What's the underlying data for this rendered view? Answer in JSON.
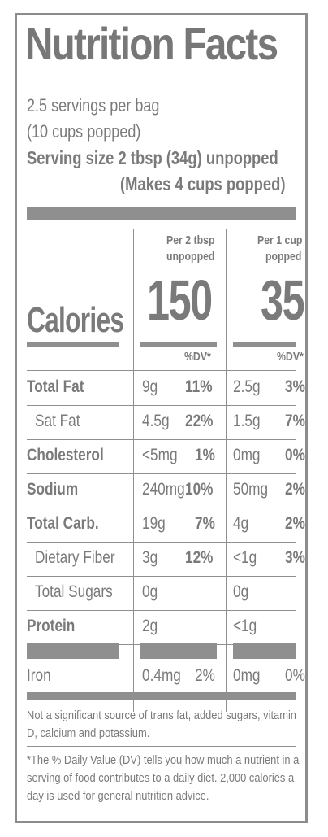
{
  "title": "Nutrition Facts",
  "servings": {
    "per_container": "2.5 servings per bag",
    "popped_total": "(10 cups popped)",
    "serving_size": "Serving size 2 tbsp (34g) unpopped",
    "makes": "(Makes 4 cups popped)"
  },
  "columns": {
    "a_header_line1": "Per 2 tbsp",
    "a_header_line2": "unpopped",
    "b_header_line1": "Per 1 cup",
    "b_header_line2": "popped",
    "dv_a": "%DV*",
    "dv_b": "%DV*"
  },
  "calories": {
    "label": "Calories",
    "a": "150",
    "b": "35"
  },
  "nutrients": [
    {
      "name": "Total Fat",
      "a_amt": "9g",
      "a_dv": "11%",
      "b_amt": "2.5g",
      "b_dv": "3%",
      "bold": true,
      "indent": false
    },
    {
      "name": "Sat Fat",
      "a_amt": "4.5g",
      "a_dv": "22%",
      "b_amt": "1.5g",
      "b_dv": "7%",
      "bold": false,
      "indent": true
    },
    {
      "name": "Cholesterol",
      "a_amt": "<5mg",
      "a_dv": "1%",
      "b_amt": "0mg",
      "b_dv": "0%",
      "bold": true,
      "indent": false
    },
    {
      "name": "Sodium",
      "a_amt": "240mg",
      "a_dv": "10%",
      "b_amt": "50mg",
      "b_dv": "2%",
      "bold": true,
      "indent": false
    },
    {
      "name": "Total Carb.",
      "a_amt": "19g",
      "a_dv": "7%",
      "b_amt": "4g",
      "b_dv": "2%",
      "bold": true,
      "indent": false
    },
    {
      "name": "Dietary Fiber",
      "a_amt": "3g",
      "a_dv": "12%",
      "b_amt": "<1g",
      "b_dv": "3%",
      "bold": false,
      "indent": true
    },
    {
      "name": "Total Sugars",
      "a_amt": "0g",
      "a_dv": "",
      "b_amt": "0g",
      "b_dv": "",
      "bold": false,
      "indent": true
    },
    {
      "name": "Protein",
      "a_amt": "2g",
      "a_dv": "",
      "b_amt": "<1g",
      "b_dv": "",
      "bold": true,
      "indent": false
    }
  ],
  "iron": {
    "name": "Iron",
    "a_amt": "0.4mg",
    "a_dv": "2%",
    "b_amt": "0mg",
    "b_dv": "0%"
  },
  "footnotes": {
    "not_significant": "Not a significant source of trans fat, added sugars, vitamin D, calcium and potassium.",
    "dv_note": "*The % Daily Value (DV) tells you how much a nutrient in a serving of food contributes to a daily diet. 2,000 calories a day is used for general nutrition advice."
  },
  "colors": {
    "ink": "#7a7a7a",
    "rule": "#8f8f8f"
  }
}
